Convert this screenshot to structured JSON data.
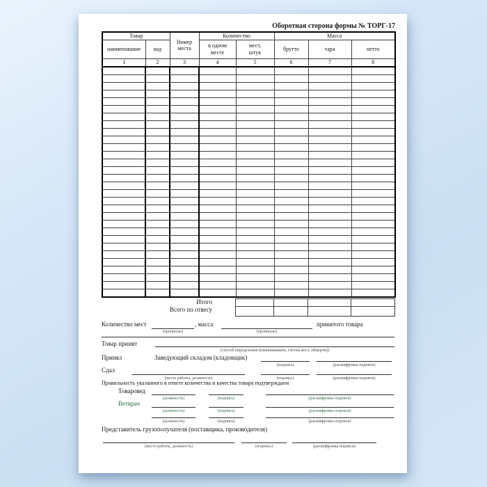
{
  "page_title": "Оборотная сторона формы № ТОРГ-17",
  "table": {
    "body_row_count": 30,
    "column_count": 8,
    "groups": {
      "tovar": "Товар",
      "nomer_mesta": "Номер\nместа",
      "kolichestvo": "Количество",
      "massa": "Масса"
    },
    "sub_headers": {
      "naimenovanie": "наименование",
      "kod": "код",
      "v_odnom_meste": "в одном\nместе",
      "mest_shtuk": "мест,\nштук",
      "brutto": "брутто",
      "tara": "тара",
      "netto": "нетто"
    },
    "column_numbers": [
      "1",
      "2",
      "3",
      "4",
      "5",
      "6",
      "7",
      "8"
    ],
    "totals": {
      "itogo": "Итого",
      "vsego_po_otvesu": "Всего по отвесу"
    }
  },
  "footer": {
    "kolichestvo_mest_label": "Количество мест",
    "propisyu_caption": "(прописью)",
    "massa_label": ", масса",
    "prinyatogo_tovara_label": "принятого товара",
    "tovar_prinyat_label": "Товар принят",
    "sposob_caption": "(способ определения (взвешиванием, счетом мест, обмером))",
    "prinyal_label": "Принял",
    "zav_skladom_label": "Заведующий складом (кладовщик)",
    "podpis_caption": "(подпись)",
    "rasshifrovka_caption": "(расшифровка подписи)",
    "sdal_label": "Сдал",
    "mesto_raboty_caption": "(место работы, должность)",
    "pravilnost_label": "Правильность указанного в ответе количества и качества товара подтверждаем",
    "tovaroved_label": "Товаровед",
    "vetvrach_label": "Ветврач",
    "dolzhnost_caption": "(должность)",
    "predstavitel_label": "Представитель грузополучателя (поставщика, производителя)"
  },
  "colors": {
    "vetvrach_green": "#1e6f3e",
    "backdrop_blue": "#d2e4f6",
    "page_white": "#ffffff"
  }
}
